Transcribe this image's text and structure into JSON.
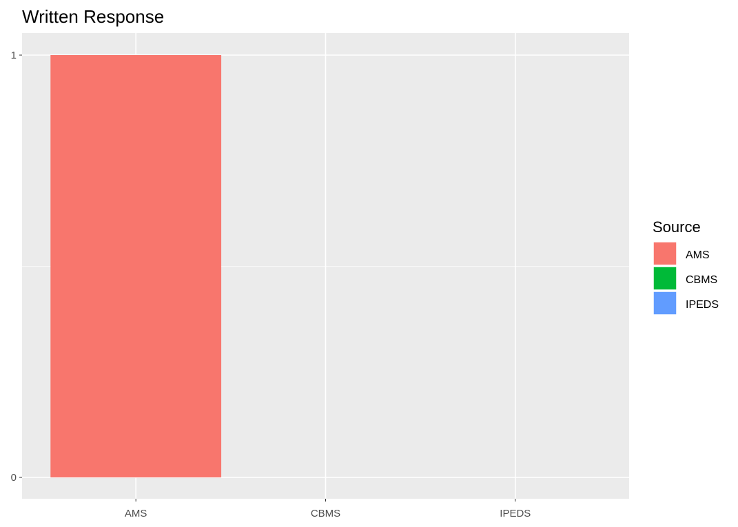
{
  "chart_data": {
    "type": "bar",
    "title": "Written Response",
    "xlabel": "",
    "ylabel": "",
    "categories": [
      "AMS",
      "CBMS",
      "IPEDS"
    ],
    "values": [
      1,
      0,
      0
    ],
    "ylim": [
      0,
      1
    ],
    "yticks": [
      0,
      1
    ],
    "grid": true,
    "legend": {
      "title": "Source",
      "position": "right",
      "entries": [
        "AMS",
        "CBMS",
        "IPEDS"
      ]
    },
    "colors": {
      "AMS": "#F8766D",
      "CBMS": "#00BA38",
      "IPEDS": "#619CFF",
      "panel_background": "#EBEBEB",
      "grid": "#FFFFFF",
      "tick_text": "#4D4D4D",
      "tick_mark": "#333333"
    }
  }
}
